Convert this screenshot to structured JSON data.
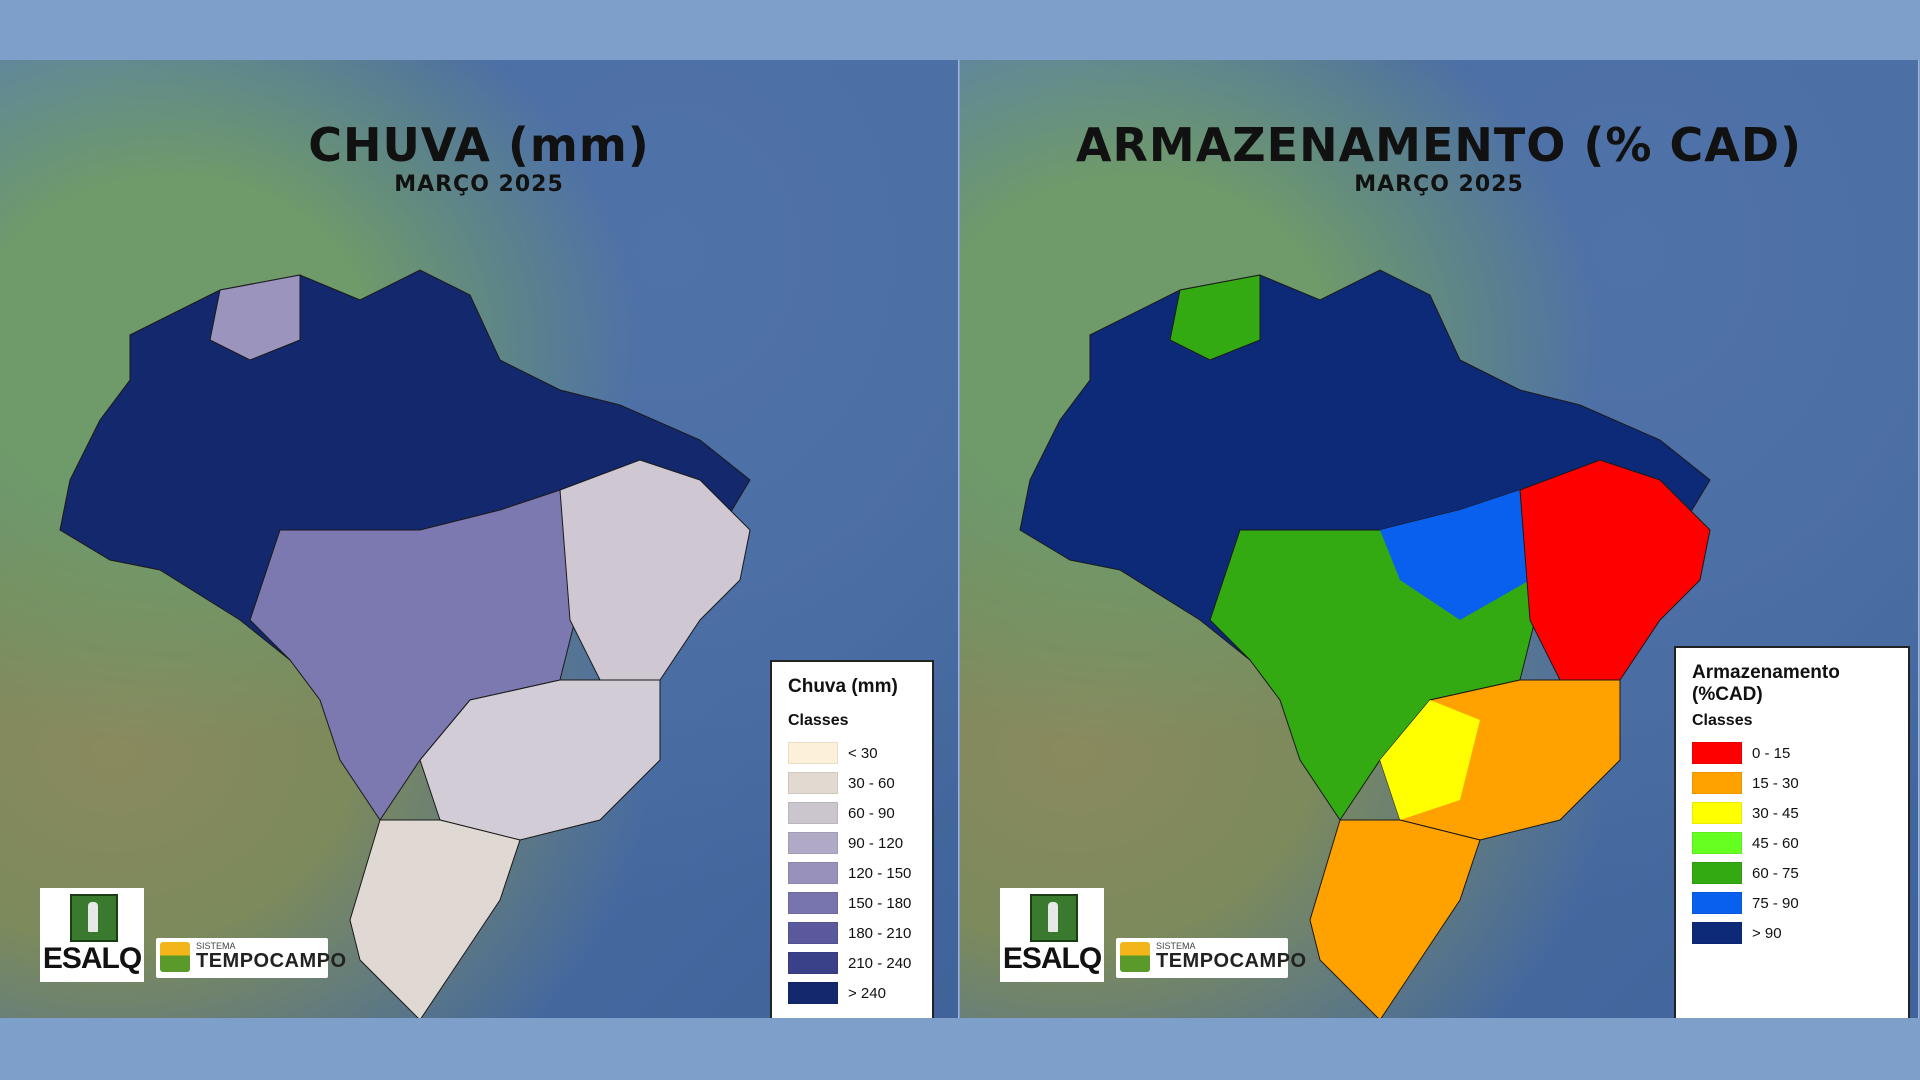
{
  "left_panel": {
    "title": "CHUVA (mm)",
    "subtitle": "MARÇO 2025",
    "legend": {
      "title": "Chuva (mm)",
      "classes_label": "Classes",
      "items": [
        {
          "label": "< 30",
          "color": "#fdf0d8"
        },
        {
          "label": "30 - 60",
          "color": "#e2dad0"
        },
        {
          "label": "60 - 90",
          "color": "#cbc5ce"
        },
        {
          "label": "90 - 120",
          "color": "#b1aac6"
        },
        {
          "label": "120 - 150",
          "color": "#9891bb"
        },
        {
          "label": "150 - 180",
          "color": "#7874ad"
        },
        {
          "label": "180 - 210",
          "color": "#5a599d"
        },
        {
          "label": "210 - 240",
          "color": "#3a4189"
        },
        {
          "label": "> 240",
          "color": "#13286d"
        }
      ]
    }
  },
  "right_panel": {
    "title": "ARMAZENAMENTO (% CAD)",
    "subtitle": "MARÇO 2025",
    "legend": {
      "title": "Armazenamento (%CAD)",
      "classes_label": "Classes",
      "items": [
        {
          "label": "0 - 15",
          "color": "#ff0000"
        },
        {
          "label": "15 - 30",
          "color": "#ffa200"
        },
        {
          "label": "30 - 45",
          "color": "#ffff00"
        },
        {
          "label": "45 - 60",
          "color": "#66ff22"
        },
        {
          "label": "60 - 75",
          "color": "#33aa11"
        },
        {
          "label": "75 - 90",
          "color": "#0a60ee"
        },
        {
          "label": "> 90",
          "color": "#0c2a78"
        }
      ]
    }
  },
  "logos": {
    "esalq_text": "ESALQ",
    "tempocampo_small": "SISTEMA",
    "tempocampo_big": "TEMPOCAMPO"
  }
}
